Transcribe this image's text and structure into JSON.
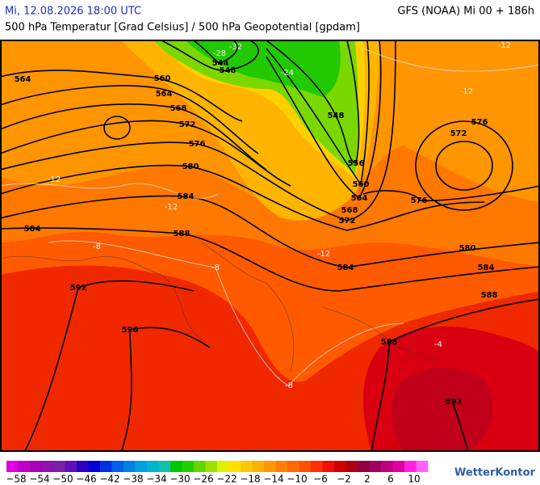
{
  "header": {
    "valid_time": "Mi, 12.08.2026 18:00 UTC",
    "model_run": "GFS (NOAA) Mi 00 + 186h",
    "subtitle": "500 hPa Temperatur [Grad Celsius] / 500 hPa Geopotential [gpdam]"
  },
  "map": {
    "geopotential_labels": [
      "564",
      "560",
      "564",
      "568",
      "572",
      "576",
      "580",
      "584",
      "588",
      "584",
      "592",
      "596",
      "544",
      "548",
      "548",
      "556",
      "560",
      "564",
      "568",
      "572",
      "576",
      "572",
      "576",
      "580",
      "584",
      "584",
      "588",
      "588",
      "592"
    ],
    "temperature_labels": [
      "-32",
      "-28",
      "-24",
      "-12",
      "-12",
      "-12",
      "-12",
      "-12",
      "-8",
      "-8",
      "-8",
      "-4"
    ]
  },
  "colorbar": {
    "labels": [
      "−58",
      "−54",
      "−50",
      "−46",
      "−42",
      "−38",
      "−34",
      "−30",
      "−26",
      "−22",
      "−18",
      "−14",
      "−10",
      "−6",
      "−2",
      "2",
      "6",
      "10"
    ],
    "colors": [
      "#e000e0",
      "#c000c8",
      "#a800b4",
      "#9010b0",
      "#7820a8",
      "#6010b8",
      "#3000c0",
      "#0000d8",
      "#0030e0",
      "#0060e8",
      "#0080e0",
      "#00a0e0",
      "#00b4d0",
      "#10c0b0",
      "#00c800",
      "#20d000",
      "#60d800",
      "#a0e000",
      "#e0f000",
      "#ffe000",
      "#ffc800",
      "#ffb000",
      "#ff9800",
      "#ff8000",
      "#ff6800",
      "#ff5000",
      "#ff3000",
      "#f01000",
      "#d00000",
      "#b00010",
      "#900040",
      "#a00060",
      "#c00080",
      "#e000a0",
      "#ff20e0",
      "#ff60ff"
    ]
  },
  "logo": "WetterKontor"
}
